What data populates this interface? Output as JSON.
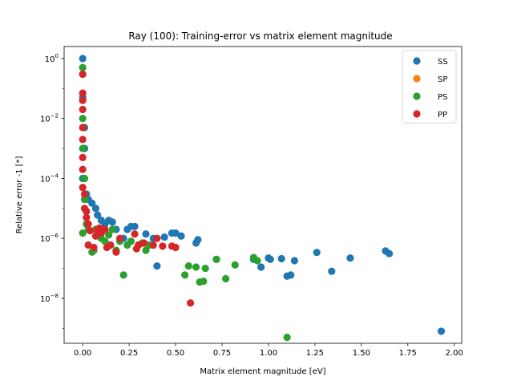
{
  "chart_data": {
    "type": "scatter",
    "title": "Ray (100): Training-error vs matrix element magnitude",
    "xlabel": "Matrix element magnitude [eV]",
    "ylabel": "Relative error -1 [*]",
    "xlim": [
      -0.1,
      2.04
    ],
    "ylim_log10": [
      -9.5,
      0.4
    ],
    "yscale": "log",
    "grid": false,
    "legend_position": "top-right",
    "x_ticks": [
      {
        "value": 0.0,
        "label": "0.00"
      },
      {
        "value": 0.25,
        "label": "0.25"
      },
      {
        "value": 0.5,
        "label": "0.50"
      },
      {
        "value": 0.75,
        "label": "0.75"
      },
      {
        "value": 1.0,
        "label": "1.00"
      },
      {
        "value": 1.25,
        "label": "1.25"
      },
      {
        "value": 1.5,
        "label": "1.50"
      },
      {
        "value": 1.75,
        "label": "1.75"
      },
      {
        "value": 2.0,
        "label": "2.00"
      }
    ],
    "y_ticks": [
      {
        "exp": 0,
        "base": "10",
        "sup": "0"
      },
      {
        "exp": -2,
        "base": "10",
        "sup": "−2"
      },
      {
        "exp": -4,
        "base": "10",
        "sup": "−4"
      },
      {
        "exp": -6,
        "base": "10",
        "sup": "−6"
      },
      {
        "exp": -8,
        "base": "10",
        "sup": "−8"
      }
    ],
    "series": [
      {
        "name": "SS",
        "color": "#1f77b4",
        "points": [
          [
            0.0,
            1.0
          ],
          [
            0.0,
            0.3
          ],
          [
            0.0,
            0.05
          ],
          [
            0.01,
            0.005
          ],
          [
            0.01,
            0.001
          ],
          [
            0.0,
            0.0001
          ],
          [
            0.02,
            3e-05
          ],
          [
            0.03,
            2e-05
          ],
          [
            0.05,
            1.5e-05
          ],
          [
            0.07,
            1e-05
          ],
          [
            0.08,
            6e-06
          ],
          [
            0.1,
            4e-06
          ],
          [
            0.12,
            3e-06
          ],
          [
            0.14,
            4e-06
          ],
          [
            0.16,
            3.5e-06
          ],
          [
            0.18,
            2e-06
          ],
          [
            0.22,
            1e-06
          ],
          [
            0.24,
            2e-06
          ],
          [
            0.26,
            2.5e-06
          ],
          [
            0.28,
            2.5e-06
          ],
          [
            0.34,
            1.4e-06
          ],
          [
            0.38,
            1e-06
          ],
          [
            0.4,
            1.2e-07
          ],
          [
            0.44,
            1.1e-06
          ],
          [
            0.48,
            1.5e-06
          ],
          [
            0.5,
            1.5e-06
          ],
          [
            0.53,
            1.2e-06
          ],
          [
            0.61,
            7e-07
          ],
          [
            0.62,
            9e-07
          ],
          [
            0.72,
            2e-07
          ],
          [
            0.92,
            2e-07
          ],
          [
            0.96,
            1.1e-07
          ],
          [
            1.0,
            2.2e-07
          ],
          [
            1.01,
            2e-07
          ],
          [
            1.07,
            2.1e-07
          ],
          [
            1.1,
            5.5e-08
          ],
          [
            1.12,
            6e-08
          ],
          [
            1.14,
            1.8e-07
          ],
          [
            1.26,
            3.4e-07
          ],
          [
            1.34,
            8e-08
          ],
          [
            1.44,
            2.2e-07
          ],
          [
            1.63,
            3.8e-07
          ],
          [
            1.65,
            3.1e-07
          ],
          [
            1.93,
            8e-10
          ]
        ]
      },
      {
        "name": "SP",
        "color": "#ff7f0e",
        "points": []
      },
      {
        "name": "PS",
        "color": "#2ca02c",
        "points": [
          [
            0.0,
            0.5
          ],
          [
            0.0,
            0.01
          ],
          [
            0.0,
            0.001
          ],
          [
            0.01,
            0.0001
          ],
          [
            0.01,
            2e-05
          ],
          [
            0.02,
            3e-06
          ],
          [
            0.0,
            1.5e-06
          ],
          [
            0.03,
            2e-06
          ],
          [
            0.05,
            3.5e-07
          ],
          [
            0.06,
            4e-07
          ],
          [
            0.07,
            2e-06
          ],
          [
            0.1,
            1e-06
          ],
          [
            0.12,
            8e-07
          ],
          [
            0.14,
            1.3e-06
          ],
          [
            0.16,
            2e-06
          ],
          [
            0.18,
            4e-07
          ],
          [
            0.2,
            8e-07
          ],
          [
            0.22,
            6e-08
          ],
          [
            0.24,
            6e-07
          ],
          [
            0.26,
            8e-07
          ],
          [
            0.3,
            6e-07
          ],
          [
            0.32,
            7e-07
          ],
          [
            0.34,
            4e-07
          ],
          [
            0.36,
            6e-07
          ],
          [
            0.55,
            6e-08
          ],
          [
            0.57,
            1.2e-07
          ],
          [
            0.61,
            1.1e-07
          ],
          [
            0.63,
            3.5e-08
          ],
          [
            0.65,
            3.7e-08
          ],
          [
            0.66,
            1e-07
          ],
          [
            0.72,
            2e-07
          ],
          [
            0.77,
            4.5e-08
          ],
          [
            0.82,
            1.3e-07
          ],
          [
            0.92,
            2.3e-07
          ],
          [
            0.94,
            1.8e-07
          ],
          [
            1.1,
            5e-10
          ]
        ]
      },
      {
        "name": "PP",
        "color": "#d62728",
        "points": [
          [
            0.0,
            0.3
          ],
          [
            0.0,
            0.07
          ],
          [
            0.0,
            0.04
          ],
          [
            0.0,
            0.02
          ],
          [
            0.0,
            0.005
          ],
          [
            0.0,
            0.002
          ],
          [
            0.0,
            0.0005
          ],
          [
            0.0,
            0.0002
          ],
          [
            0.0,
            5e-05
          ],
          [
            0.01,
            3e-05
          ],
          [
            0.01,
            1e-05
          ],
          [
            0.02,
            8e-06
          ],
          [
            0.02,
            5e-06
          ],
          [
            0.03,
            3e-06
          ],
          [
            0.04,
            1.8e-06
          ],
          [
            0.03,
            6e-07
          ],
          [
            0.06,
            5e-07
          ],
          [
            0.07,
            1.2e-06
          ],
          [
            0.08,
            2e-06
          ],
          [
            0.09,
            2.2e-06
          ],
          [
            0.1,
            1.5e-06
          ],
          [
            0.12,
            2e-06
          ],
          [
            0.13,
            5e-07
          ],
          [
            0.15,
            6e-07
          ],
          [
            0.18,
            3.5e-07
          ],
          [
            0.2,
            1e-06
          ],
          [
            0.28,
            1.4e-06
          ],
          [
            0.29,
            4.5e-07
          ],
          [
            0.3,
            6e-07
          ],
          [
            0.33,
            7e-07
          ],
          [
            0.38,
            6e-07
          ],
          [
            0.4,
            1e-06
          ],
          [
            0.43,
            5.5e-07
          ],
          [
            0.48,
            5.5e-07
          ],
          [
            0.5,
            5e-07
          ],
          [
            0.58,
            7e-09
          ]
        ]
      }
    ]
  }
}
